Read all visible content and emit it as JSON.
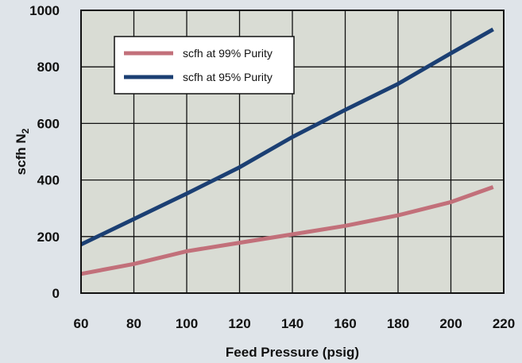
{
  "chart_data": {
    "type": "line",
    "xlabel": "Feed Pressure (psig)",
    "ylabel": "scfh N",
    "ylabel_sub": "2",
    "xlim": [
      60,
      220
    ],
    "ylim": [
      0,
      1000
    ],
    "x_ticks": [
      "60",
      "80",
      "100",
      "120",
      "140",
      "160",
      "180",
      "200",
      "220"
    ],
    "y_ticks": [
      "0",
      "200",
      "400",
      "600",
      "800",
      "1000"
    ],
    "grid": true,
    "legend_position": "top-left",
    "background_color": "#dfe4e9",
    "plot_background_color": "#d9dcd4",
    "series": [
      {
        "name": "scfh at 99% Purity",
        "color": "#c2707a",
        "x": [
          60,
          80,
          100,
          120,
          140,
          160,
          180,
          200,
          216
        ],
        "y": [
          68,
          103,
          148,
          178,
          208,
          238,
          275,
          322,
          375
        ]
      },
      {
        "name": "scfh at 95% Purity",
        "color": "#1b3f73",
        "x": [
          60,
          80,
          100,
          120,
          140,
          160,
          180,
          200,
          216
        ],
        "y": [
          172,
          262,
          352,
          445,
          552,
          648,
          740,
          848,
          933
        ]
      }
    ]
  }
}
